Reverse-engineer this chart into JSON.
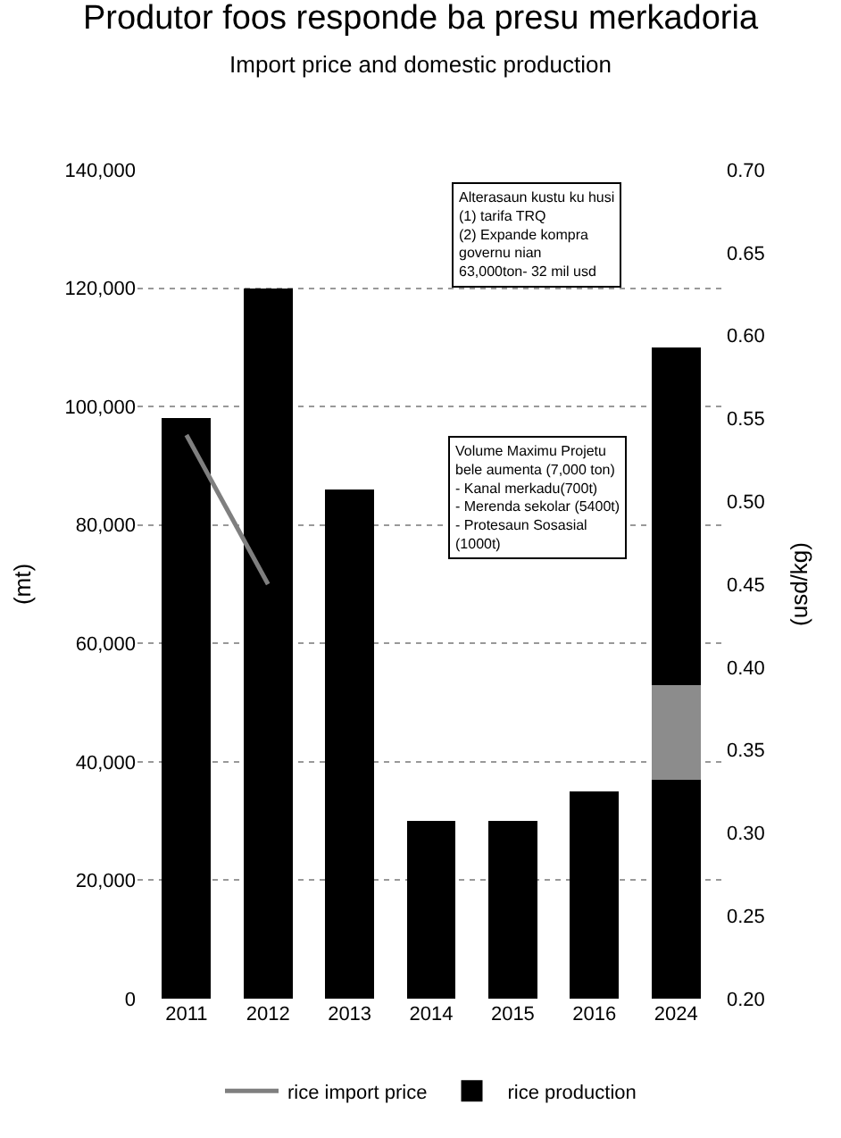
{
  "chart_data": {
    "type": "bar",
    "title": "Produtor foos responde ba presu merkadoria",
    "subtitle": "Import price and domestic production",
    "ylabel": "(mt)",
    "y2label": "(usd/kg)",
    "categories": [
      "2011",
      "2012",
      "2013",
      "2014",
      "2015",
      "2016",
      "2024"
    ],
    "stacked": true,
    "series": [
      {
        "name": "rice production",
        "color": "#000000",
        "values": [
          98000,
          120000,
          86000,
          30000,
          30000,
          35000,
          37000
        ]
      },
      {
        "color": "#8c8c8c",
        "values": [
          null,
          null,
          null,
          null,
          null,
          null,
          16000
        ]
      },
      {
        "color": "#000000",
        "values": [
          null,
          null,
          null,
          null,
          null,
          null,
          57000
        ]
      },
      {
        "name": "rice import price",
        "type": "line",
        "axis": "y2",
        "color": "#7f7f7f",
        "values": [
          0.54,
          0.45,
          null,
          null,
          null,
          null,
          null
        ]
      }
    ],
    "ylim": [
      0,
      140000
    ],
    "yticks": [
      {
        "value": 0,
        "label": "0"
      },
      {
        "value": 20000,
        "label": "20,000"
      },
      {
        "value": 40000,
        "label": "40,000"
      },
      {
        "value": 60000,
        "label": "60,000"
      },
      {
        "value": 80000,
        "label": "80,000"
      },
      {
        "value": 100000,
        "label": "100,000"
      },
      {
        "value": 120000,
        "label": "120,000"
      },
      {
        "value": 140000,
        "label": "140,000"
      }
    ],
    "y2lim": [
      0.2,
      0.7
    ],
    "y2ticks": [
      {
        "value": 0.2,
        "label": "0.20"
      },
      {
        "value": 0.25,
        "label": "0.25"
      },
      {
        "value": 0.3,
        "label": "0.30"
      },
      {
        "value": 0.35,
        "label": "0.35"
      },
      {
        "value": 0.4,
        "label": "0.40"
      },
      {
        "value": 0.45,
        "label": "0.45"
      },
      {
        "value": 0.5,
        "label": "0.50"
      },
      {
        "value": 0.55,
        "label": "0.55"
      },
      {
        "value": 0.6,
        "label": "0.60"
      },
      {
        "value": 0.65,
        "label": "0.65"
      },
      {
        "value": 0.7,
        "label": "0.70"
      }
    ],
    "grid": "y",
    "legend": "bottom",
    "annotations": [
      "Alterasaun kustu ku husi\n(1) tarifa TRQ\n(2) Expande kompra\ngovernu nian\n63,000ton- 32 mil usd",
      "Volume Maximu Projetu\nbele aumenta (7,000 ton)\n- Kanal merkadu(700t)\n- Merenda sekolar (5400t)\n- Protesaun Sosasial\n(1000t)"
    ]
  }
}
